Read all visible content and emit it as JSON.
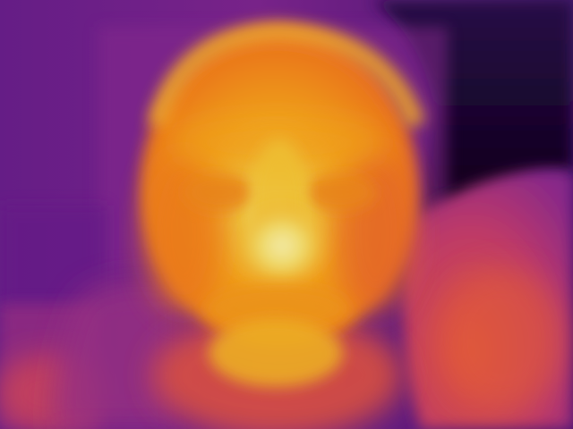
{
  "image": {
    "kind": "depth-map",
    "colormap": "inferno",
    "palette": {
      "far": "#0d0318",
      "deep_purple": "#2a0a4a",
      "purple": "#5b1a86",
      "magenta": "#8e2a8f",
      "pink_red": "#c43c6e",
      "red_orange": "#e8573f",
      "orange": "#f47e1e",
      "amber": "#f9a51e",
      "yellow": "#f4d43a",
      "near": "#fbf4a6"
    }
  }
}
